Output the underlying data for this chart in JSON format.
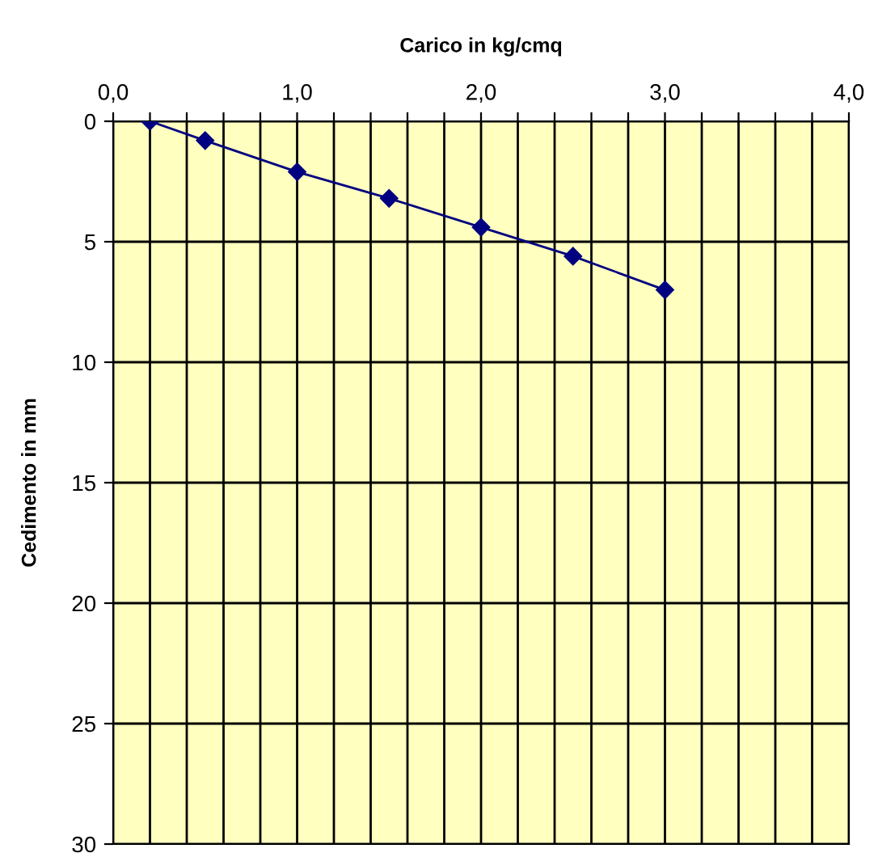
{
  "chart_data": {
    "type": "line",
    "xlabel": "Carico in kg/cmq",
    "ylabel": "Cedimento in mm",
    "x": [
      0.2,
      0.5,
      1.0,
      1.5,
      2.0,
      2.5,
      3.0
    ],
    "series": [
      {
        "color": "#000080",
        "values": [
          0,
          0.8,
          2.1,
          3.2,
          4.4,
          5.6,
          7.0
        ]
      }
    ],
    "xlim": [
      0,
      4
    ],
    "ylim": [
      30,
      0
    ],
    "xticks": [
      {
        "value": 0,
        "label": "0,0"
      },
      {
        "value": 0.2,
        "label": null
      },
      {
        "value": 0.4,
        "label": null
      },
      {
        "value": 0.6,
        "label": null
      },
      {
        "value": 0.8,
        "label": null
      },
      {
        "value": 1,
        "label": "1,0"
      },
      {
        "value": 1.2,
        "label": null
      },
      {
        "value": 1.4,
        "label": null
      },
      {
        "value": 1.6,
        "label": null
      },
      {
        "value": 1.8,
        "label": null
      },
      {
        "value": 2,
        "label": "2,0"
      },
      {
        "value": 2.2,
        "label": null
      },
      {
        "value": 2.4,
        "label": null
      },
      {
        "value": 2.6,
        "label": null
      },
      {
        "value": 2.8,
        "label": null
      },
      {
        "value": 3,
        "label": "3,0"
      },
      {
        "value": 3.2,
        "label": null
      },
      {
        "value": 3.4,
        "label": null
      },
      {
        "value": 3.6,
        "label": null
      },
      {
        "value": 3.8,
        "label": null
      },
      {
        "value": 4,
        "label": "4,0"
      }
    ],
    "yticks": [
      0,
      5,
      10,
      15,
      20,
      25,
      30
    ],
    "grid": true,
    "marker": "diamond",
    "line_style": "solid"
  }
}
